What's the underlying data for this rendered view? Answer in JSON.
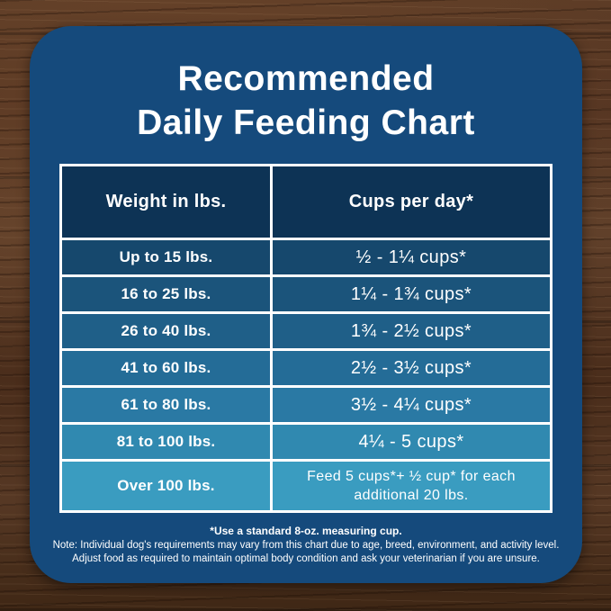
{
  "title": {
    "line1": "Recommended",
    "line2": "Daily Feeding Chart"
  },
  "table": {
    "headers": {
      "weight": "Weight in lbs.",
      "cups": "Cups per day*",
      "bg": "#0d3355"
    },
    "rows": [
      {
        "weight": "Up to 15 lbs.",
        "cups": "½ - 1¼ cups*",
        "bg": "#16486d"
      },
      {
        "weight": "16 to 25 lbs.",
        "cups": "1¼ - 1¾  cups*",
        "bg": "#1b547b"
      },
      {
        "weight": "26 to 40 lbs.",
        "cups": "1¾ - 2½ cups*",
        "bg": "#1f5f88"
      },
      {
        "weight": "41 to 60 lbs.",
        "cups": "2½ - 3½ cups*",
        "bg": "#246c97"
      },
      {
        "weight": "61 to 80 lbs.",
        "cups": "3½ - 4¼ cups*",
        "bg": "#2a79a4"
      },
      {
        "weight": "81 to 100 lbs.",
        "cups": "4¼ - 5 cups*",
        "bg": "#3089b0"
      },
      {
        "weight": "Over 100 lbs.",
        "cups": "Feed 5 cups*+ ½ cup* for each additional 20 lbs.",
        "bg": "#3a9cc0"
      }
    ]
  },
  "footnotes": {
    "measuring_cup": "*Use a standard 8-oz. measuring cup.",
    "note_line1": "Note: Individual dog's requirements may vary from this chart due to age, breed, environment, and activity level.",
    "note_line2": "Adjust food as required to maintain optimal body condition and ask your veterinarian if you are unsure."
  },
  "colors": {
    "card_bg": "#154a7c",
    "table_border": "#ffffff",
    "text": "#ffffff",
    "wood_base": "#4f3220"
  },
  "chart_data": {
    "type": "table",
    "title": "Recommended Daily Feeding Chart",
    "columns": [
      "Weight in lbs.",
      "Cups per day*"
    ],
    "rows": [
      [
        "Up to 15 lbs.",
        "½ - 1¼ cups*"
      ],
      [
        "16 to 25 lbs.",
        "1¼ - 1¾ cups*"
      ],
      [
        "26 to 40 lbs.",
        "1¾ - 2½ cups*"
      ],
      [
        "41 to 60 lbs.",
        "2½ - 3½ cups*"
      ],
      [
        "61 to 80 lbs.",
        "3½ - 4¼ cups*"
      ],
      [
        "81 to 100 lbs.",
        "4¼ - 5 cups*"
      ],
      [
        "Over 100 lbs.",
        "Feed 5 cups*+ ½ cup* for each additional 20 lbs."
      ]
    ],
    "footnote": "*Use a standard 8-oz. measuring cup. Note: Individual dog's requirements may vary from this chart due to age, breed, environment, and activity level. Adjust food as required to maintain optimal body condition and ask your veterinarian if you are unsure.",
    "legend_position": "none",
    "grid": false
  }
}
